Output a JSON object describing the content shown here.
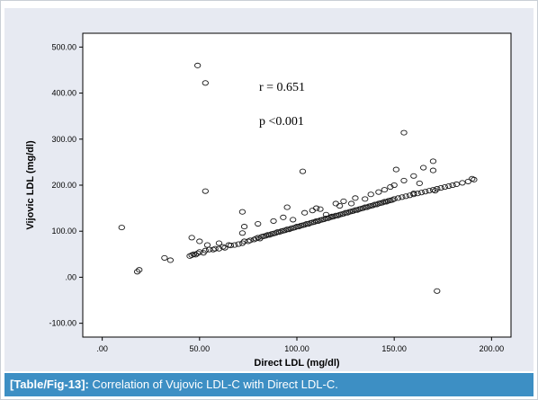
{
  "caption": {
    "tag": "[Table/Fig-13]:",
    "text": " Correlation of Vujovic LDL-C with Direct LDL-C."
  },
  "colors": {
    "panel_bg": "#e7eaf2",
    "plot_bg": "#ffffff",
    "caption_bg": "#3d8fc4",
    "marker": "#1a1a1a"
  },
  "chart_data": {
    "type": "scatter",
    "title": "",
    "xlabel": "Direct LDL (mg/dl)",
    "ylabel": "Vijovic LDL (mg/dl)",
    "xlim": [
      -10,
      210
    ],
    "ylim": [
      -130,
      530
    ],
    "xticks": [
      0,
      50,
      100,
      150,
      200
    ],
    "xtick_labels": [
      ".00",
      "50.00",
      "100.00",
      "150.00",
      "200.00"
    ],
    "yticks": [
      -100,
      0,
      100,
      200,
      300,
      400,
      500
    ],
    "ytick_labels": [
      "-100.00",
      ".00",
      "100.00",
      "200.00",
      "300.00",
      "400.00",
      "500.00"
    ],
    "grid": false,
    "marker": "open-circle",
    "annotations": [
      "r = 0.651",
      "p <0.001"
    ],
    "x": [
      10,
      18,
      19,
      32,
      35,
      45,
      46,
      47,
      48,
      49,
      50,
      52,
      53,
      55,
      57,
      58,
      60,
      62,
      63,
      65,
      66,
      68,
      70,
      72,
      72,
      73,
      75,
      76,
      78,
      79,
      80,
      81,
      82,
      83,
      84,
      85,
      86,
      87,
      88,
      89,
      90,
      91,
      92,
      93,
      94,
      95,
      96,
      97,
      98,
      99,
      100,
      101,
      102,
      103,
      104,
      105,
      106,
      107,
      108,
      109,
      110,
      111,
      112,
      113,
      114,
      115,
      116,
      117,
      118,
      119,
      120,
      121,
      122,
      123,
      124,
      125,
      126,
      127,
      128,
      129,
      130,
      131,
      132,
      133,
      134,
      135,
      136,
      137,
      138,
      139,
      140,
      141,
      142,
      143,
      144,
      145,
      146,
      147,
      148,
      149,
      150,
      152,
      154,
      156,
      158,
      160,
      162,
      164,
      166,
      168,
      170,
      172,
      174,
      176,
      178,
      180,
      182,
      185,
      188,
      190,
      191,
      46,
      50,
      54,
      60,
      72,
      73,
      80,
      88,
      93,
      95,
      98,
      104,
      108,
      110,
      112,
      115,
      118,
      120,
      122,
      124,
      128,
      130,
      135,
      138,
      142,
      145,
      148,
      150,
      155,
      160,
      165,
      170,
      49,
      53,
      53,
      103,
      151,
      155,
      160,
      163,
      170,
      171,
      172
    ],
    "y": [
      108,
      12,
      16,
      42,
      37,
      46,
      48,
      50,
      49,
      52,
      55,
      53,
      58,
      60,
      60,
      62,
      62,
      66,
      64,
      70,
      69,
      70,
      72,
      74,
      96,
      78,
      78,
      80,
      82,
      84,
      86,
      84,
      88,
      89,
      90,
      92,
      92,
      94,
      95,
      96,
      98,
      98,
      100,
      101,
      102,
      104,
      104,
      106,
      107,
      108,
      110,
      110,
      112,
      113,
      114,
      116,
      116,
      118,
      119,
      120,
      122,
      122,
      124,
      125,
      126,
      128,
      128,
      130,
      131,
      132,
      134,
      134,
      136,
      137,
      138,
      140,
      140,
      142,
      143,
      144,
      146,
      146,
      148,
      149,
      150,
      152,
      152,
      154,
      155,
      156,
      158,
      158,
      160,
      161,
      162,
      164,
      164,
      166,
      167,
      168,
      170,
      172,
      174,
      176,
      178,
      180,
      182,
      184,
      186,
      188,
      190,
      192,
      194,
      196,
      198,
      200,
      202,
      205,
      208,
      214,
      212,
      86,
      78,
      70,
      74,
      142,
      110,
      116,
      122,
      130,
      152,
      125,
      140,
      145,
      150,
      148,
      136,
      132,
      160,
      155,
      165,
      160,
      172,
      170,
      180,
      185,
      190,
      196,
      200,
      210,
      220,
      238,
      252,
      460,
      187,
      422,
      230,
      234,
      314,
      182,
      204,
      232,
      188,
      -30
    ]
  }
}
